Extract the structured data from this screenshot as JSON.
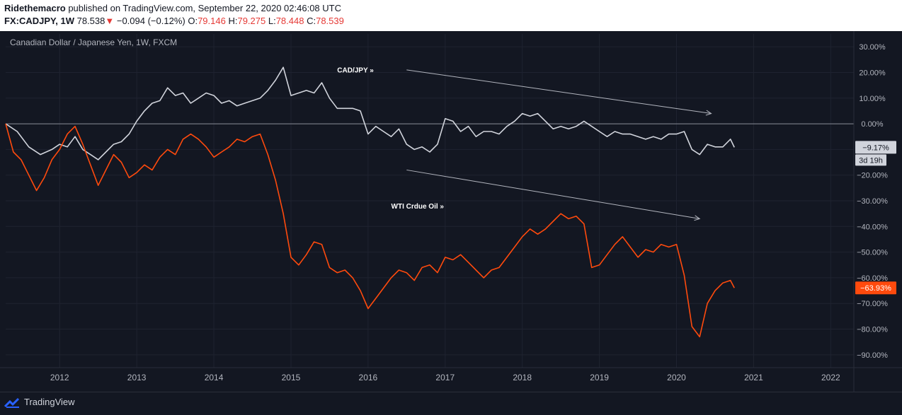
{
  "header": {
    "author": "Ridethemacro",
    "published_text": " published on TradingView.com, September 22, 2020 02:46:08 UTC",
    "symbol": "FX:CADJPY, 1W",
    "last": "78.538",
    "change_arrow": "▼",
    "change": "−0.094 (−0.12%)",
    "o_label": "O:",
    "o_value": "79.146",
    "h_label": "H:",
    "h_value": "79.275",
    "l_label": "L:",
    "l_value": "78.448",
    "c_label": "C:",
    "c_value": "78.539"
  },
  "footer": {
    "brand": "TradingView"
  },
  "colors": {
    "background": "#131722",
    "grid": "#1f2330",
    "cad_line": "#d1d4dc",
    "oil_line": "#ff4a0d",
    "axis_text": "#b2b5be",
    "zero_line": "#8a8e99"
  },
  "chart_data": {
    "type": "line",
    "title": "Canadian Dollar / Japanese Yen, 1W, FXCM",
    "y_unit": "%",
    "ylim": [
      -95,
      35
    ],
    "xlim": [
      2011.3,
      2022.3
    ],
    "y_ticks": [
      "30.00%",
      "20.00%",
      "10.00%",
      "0.00%",
      "−10.00%",
      "−20.00%",
      "−30.00%",
      "−40.00%",
      "−50.00%",
      "−60.00%",
      "−70.00%",
      "−80.00%",
      "−90.00%"
    ],
    "y_tick_values": [
      30,
      20,
      10,
      0,
      -10,
      -20,
      -30,
      -40,
      -50,
      -60,
      -70,
      -80,
      -90
    ],
    "x_ticks": [
      "2012",
      "2013",
      "2014",
      "2015",
      "2016",
      "2017",
      "2018",
      "2019",
      "2020",
      "2021",
      "2022"
    ],
    "x_tick_values": [
      2012,
      2013,
      2014,
      2015,
      2016,
      2017,
      2018,
      2019,
      2020,
      2021,
      2022
    ],
    "series": [
      {
        "name": "CAD/JPY",
        "last_label": "−9.17%",
        "countdown": "3d 19h",
        "points": [
          [
            2011.3,
            0
          ],
          [
            2011.45,
            -3
          ],
          [
            2011.6,
            -9
          ],
          [
            2011.75,
            -12
          ],
          [
            2011.9,
            -10
          ],
          [
            2012.0,
            -8
          ],
          [
            2012.1,
            -9
          ],
          [
            2012.2,
            -5
          ],
          [
            2012.3,
            -10
          ],
          [
            2012.4,
            -12
          ],
          [
            2012.5,
            -14
          ],
          [
            2012.6,
            -11
          ],
          [
            2012.7,
            -8
          ],
          [
            2012.8,
            -7
          ],
          [
            2012.9,
            -4
          ],
          [
            2013.0,
            1
          ],
          [
            2013.1,
            5
          ],
          [
            2013.2,
            8
          ],
          [
            2013.3,
            9
          ],
          [
            2013.4,
            14
          ],
          [
            2013.5,
            11
          ],
          [
            2013.6,
            12
          ],
          [
            2013.7,
            8
          ],
          [
            2013.8,
            10
          ],
          [
            2013.9,
            12
          ],
          [
            2014.0,
            11
          ],
          [
            2014.1,
            8
          ],
          [
            2014.2,
            9
          ],
          [
            2014.3,
            7
          ],
          [
            2014.4,
            8
          ],
          [
            2014.5,
            9
          ],
          [
            2014.6,
            10
          ],
          [
            2014.7,
            13
          ],
          [
            2014.8,
            17
          ],
          [
            2014.9,
            22
          ],
          [
            2015.0,
            11
          ],
          [
            2015.1,
            12
          ],
          [
            2015.2,
            13
          ],
          [
            2015.3,
            12
          ],
          [
            2015.4,
            16
          ],
          [
            2015.5,
            10
          ],
          [
            2015.6,
            6
          ],
          [
            2015.7,
            6
          ],
          [
            2015.8,
            6
          ],
          [
            2015.9,
            5
          ],
          [
            2016.0,
            -4
          ],
          [
            2016.1,
            -1
          ],
          [
            2016.2,
            -3
          ],
          [
            2016.3,
            -5
          ],
          [
            2016.4,
            -2
          ],
          [
            2016.5,
            -8
          ],
          [
            2016.6,
            -10
          ],
          [
            2016.7,
            -9
          ],
          [
            2016.8,
            -11
          ],
          [
            2016.9,
            -8
          ],
          [
            2017.0,
            2
          ],
          [
            2017.1,
            1
          ],
          [
            2017.2,
            -3
          ],
          [
            2017.3,
            -1
          ],
          [
            2017.4,
            -5
          ],
          [
            2017.5,
            -3
          ],
          [
            2017.6,
            -3
          ],
          [
            2017.7,
            -4
          ],
          [
            2017.8,
            -1
          ],
          [
            2017.9,
            1
          ],
          [
            2018.0,
            4
          ],
          [
            2018.1,
            3
          ],
          [
            2018.2,
            4
          ],
          [
            2018.3,
            1
          ],
          [
            2018.4,
            -2
          ],
          [
            2018.5,
            -1
          ],
          [
            2018.6,
            -2
          ],
          [
            2018.7,
            -1
          ],
          [
            2018.8,
            1
          ],
          [
            2018.9,
            -1
          ],
          [
            2019.0,
            -3
          ],
          [
            2019.1,
            -5
          ],
          [
            2019.2,
            -3
          ],
          [
            2019.3,
            -4
          ],
          [
            2019.4,
            -4
          ],
          [
            2019.5,
            -5
          ],
          [
            2019.6,
            -6
          ],
          [
            2019.7,
            -5
          ],
          [
            2019.8,
            -6
          ],
          [
            2019.9,
            -4
          ],
          [
            2020.0,
            -4
          ],
          [
            2020.1,
            -3
          ],
          [
            2020.2,
            -10
          ],
          [
            2020.3,
            -12
          ],
          [
            2020.4,
            -8
          ],
          [
            2020.5,
            -9
          ],
          [
            2020.6,
            -9
          ],
          [
            2020.7,
            -6
          ],
          [
            2020.75,
            -9.17
          ]
        ]
      },
      {
        "name": "WTI Crdue Oil",
        "last_label": "−63.93%",
        "points": [
          [
            2011.3,
            0
          ],
          [
            2011.4,
            -11
          ],
          [
            2011.5,
            -14
          ],
          [
            2011.6,
            -20
          ],
          [
            2011.7,
            -26
          ],
          [
            2011.8,
            -21
          ],
          [
            2011.9,
            -14
          ],
          [
            2012.0,
            -10
          ],
          [
            2012.1,
            -4
          ],
          [
            2012.2,
            -1
          ],
          [
            2012.3,
            -8
          ],
          [
            2012.4,
            -16
          ],
          [
            2012.5,
            -24
          ],
          [
            2012.6,
            -18
          ],
          [
            2012.7,
            -12
          ],
          [
            2012.8,
            -15
          ],
          [
            2012.9,
            -21
          ],
          [
            2013.0,
            -19
          ],
          [
            2013.1,
            -16
          ],
          [
            2013.2,
            -18
          ],
          [
            2013.3,
            -13
          ],
          [
            2013.4,
            -10
          ],
          [
            2013.5,
            -12
          ],
          [
            2013.6,
            -6
          ],
          [
            2013.7,
            -4
          ],
          [
            2013.8,
            -6
          ],
          [
            2013.9,
            -9
          ],
          [
            2014.0,
            -13
          ],
          [
            2014.1,
            -11
          ],
          [
            2014.2,
            -9
          ],
          [
            2014.3,
            -6
          ],
          [
            2014.4,
            -7
          ],
          [
            2014.5,
            -5
          ],
          [
            2014.6,
            -4
          ],
          [
            2014.7,
            -12
          ],
          [
            2014.8,
            -22
          ],
          [
            2014.9,
            -35
          ],
          [
            2015.0,
            -52
          ],
          [
            2015.1,
            -55
          ],
          [
            2015.2,
            -51
          ],
          [
            2015.3,
            -46
          ],
          [
            2015.4,
            -47
          ],
          [
            2015.5,
            -56
          ],
          [
            2015.6,
            -58
          ],
          [
            2015.7,
            -57
          ],
          [
            2015.8,
            -60
          ],
          [
            2015.9,
            -65
          ],
          [
            2016.0,
            -72
          ],
          [
            2016.1,
            -68
          ],
          [
            2016.2,
            -64
          ],
          [
            2016.3,
            -60
          ],
          [
            2016.4,
            -57
          ],
          [
            2016.5,
            -58
          ],
          [
            2016.6,
            -61
          ],
          [
            2016.7,
            -56
          ],
          [
            2016.8,
            -55
          ],
          [
            2016.9,
            -58
          ],
          [
            2017.0,
            -52
          ],
          [
            2017.1,
            -53
          ],
          [
            2017.2,
            -51
          ],
          [
            2017.3,
            -54
          ],
          [
            2017.4,
            -57
          ],
          [
            2017.5,
            -60
          ],
          [
            2017.6,
            -57
          ],
          [
            2017.7,
            -56
          ],
          [
            2017.8,
            -52
          ],
          [
            2017.9,
            -48
          ],
          [
            2018.0,
            -44
          ],
          [
            2018.1,
            -41
          ],
          [
            2018.2,
            -43
          ],
          [
            2018.3,
            -41
          ],
          [
            2018.4,
            -38
          ],
          [
            2018.5,
            -35
          ],
          [
            2018.6,
            -37
          ],
          [
            2018.7,
            -36
          ],
          [
            2018.8,
            -39
          ],
          [
            2018.9,
            -56
          ],
          [
            2019.0,
            -55
          ],
          [
            2019.1,
            -51
          ],
          [
            2019.2,
            -47
          ],
          [
            2019.3,
            -44
          ],
          [
            2019.4,
            -48
          ],
          [
            2019.5,
            -52
          ],
          [
            2019.6,
            -49
          ],
          [
            2019.7,
            -50
          ],
          [
            2019.8,
            -47
          ],
          [
            2019.9,
            -48
          ],
          [
            2020.0,
            -47
          ],
          [
            2020.1,
            -59
          ],
          [
            2020.2,
            -79
          ],
          [
            2020.3,
            -83
          ],
          [
            2020.4,
            -70
          ],
          [
            2020.5,
            -65
          ],
          [
            2020.6,
            -62
          ],
          [
            2020.7,
            -61
          ],
          [
            2020.75,
            -63.93
          ]
        ]
      }
    ],
    "annotations": [
      {
        "text": "CAD/JPY",
        "arrow": "»"
      },
      {
        "text": "WTI Crdue Oil",
        "arrow": "»"
      }
    ]
  }
}
